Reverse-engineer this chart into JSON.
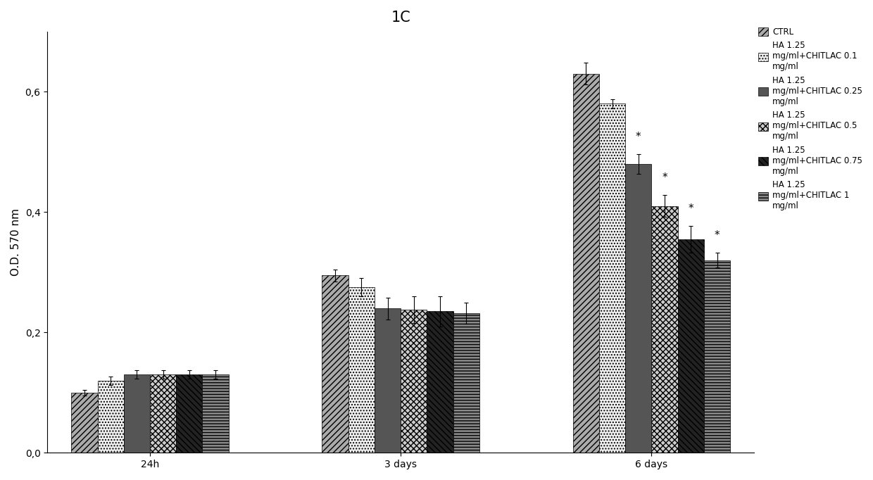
{
  "title": "1C",
  "ylabel": "O.D. 570 nm",
  "xlabel": "",
  "groups": [
    "24h",
    "3 days",
    "6 days"
  ],
  "series_labels": [
    "CTRL",
    "HA 1.25\nmg/ml+CHITLAC 0.1\nmg/ml",
    "HA 1.25\nmg/ml+CHITLAC 0.25\nmg/ml",
    "HA 1.25\nmg/ml+CHITLAC 0.5\nmg/ml",
    "HA 1.25\nmg/ml+CHITLAC 0.75\nmg/ml",
    "HA 1.25\nmg/ml+CHITLAC 1\nmg/ml"
  ],
  "values": [
    [
      0.1,
      0.295,
      0.63
    ],
    [
      0.12,
      0.275,
      0.58
    ],
    [
      0.13,
      0.24,
      0.48
    ],
    [
      0.13,
      0.238,
      0.41
    ],
    [
      0.13,
      0.235,
      0.355
    ],
    [
      0.13,
      0.232,
      0.32
    ]
  ],
  "errors": [
    [
      0.005,
      0.01,
      0.018
    ],
    [
      0.007,
      0.015,
      0.008
    ],
    [
      0.007,
      0.018,
      0.016
    ],
    [
      0.007,
      0.022,
      0.018
    ],
    [
      0.007,
      0.025,
      0.022
    ],
    [
      0.007,
      0.018,
      0.012
    ]
  ],
  "significance": [
    [
      false,
      false,
      false
    ],
    [
      false,
      false,
      false
    ],
    [
      false,
      false,
      true
    ],
    [
      false,
      false,
      true
    ],
    [
      false,
      false,
      true
    ],
    [
      false,
      false,
      true
    ]
  ],
  "hatch_patterns": [
    "////",
    "....",
    "====",
    "xxxx",
    "\\\\\\\\",
    "----"
  ],
  "face_colors": [
    "#aaaaaa",
    "#f0f0f0",
    "#555555",
    "#cccccc",
    "#222222",
    "#888888"
  ],
  "ylim": [
    0.0,
    0.7
  ],
  "yticks": [
    0.0,
    0.2,
    0.4,
    0.6
  ],
  "ytick_labels": [
    "0,0",
    "0,2",
    "0,4",
    "0,6"
  ],
  "background_color": "#ffffff",
  "title_fontsize": 15,
  "axis_fontsize": 11,
  "tick_fontsize": 10,
  "legend_fontsize": 8.5,
  "bar_width": 0.115,
  "group_positions": [
    0.4,
    1.5,
    2.6
  ]
}
